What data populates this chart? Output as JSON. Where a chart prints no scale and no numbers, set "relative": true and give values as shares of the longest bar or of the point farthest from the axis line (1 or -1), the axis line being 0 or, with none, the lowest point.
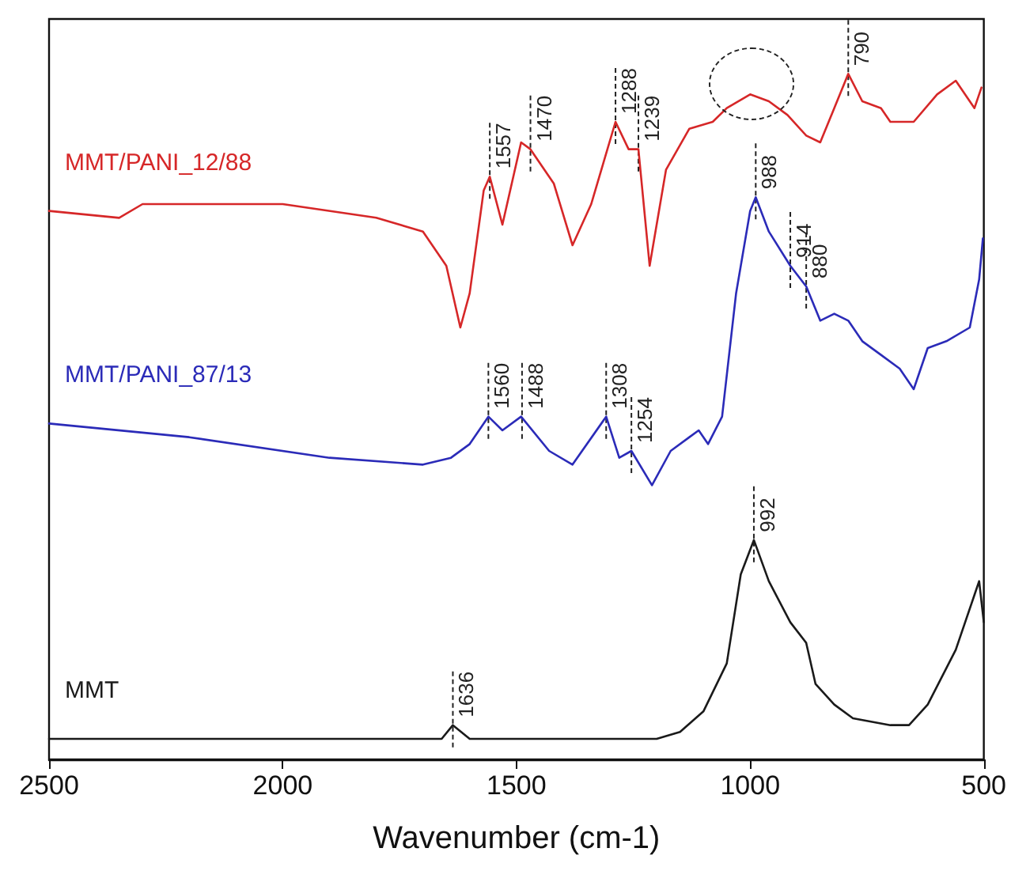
{
  "chart_data": {
    "type": "line",
    "relative": true,
    "xlabel": "Wavenumber (cm-1)",
    "xlim": [
      2500,
      500
    ],
    "xticks": [
      2500,
      2000,
      1500,
      1000,
      500
    ],
    "series": [
      {
        "name": "MMT/PANI_12/88",
        "color": "#d62728",
        "x": [
          2500,
          2350,
          2300,
          2000,
          1800,
          1700,
          1650,
          1620,
          1600,
          1570,
          1557,
          1530,
          1490,
          1470,
          1420,
          1380,
          1340,
          1288,
          1260,
          1239,
          1215,
          1180,
          1130,
          1080,
          1050,
          1000,
          960,
          920,
          880,
          850,
          820,
          790,
          760,
          720,
          700,
          650,
          600,
          560,
          520,
          505
        ],
        "values": [
          0.8,
          0.79,
          0.81,
          0.81,
          0.79,
          0.77,
          0.72,
          0.63,
          0.68,
          0.83,
          0.85,
          0.78,
          0.9,
          0.89,
          0.84,
          0.75,
          0.81,
          0.93,
          0.89,
          0.89,
          0.72,
          0.86,
          0.92,
          0.93,
          0.95,
          0.97,
          0.96,
          0.94,
          0.91,
          0.9,
          0.95,
          1.0,
          0.96,
          0.95,
          0.93,
          0.93,
          0.97,
          0.99,
          0.95,
          0.98
        ]
      },
      {
        "name": "MMT/PANI_87/13",
        "color": "#2b2bb8",
        "x": [
          2500,
          2200,
          1900,
          1700,
          1640,
          1600,
          1560,
          1530,
          1490,
          1430,
          1380,
          1308,
          1280,
          1254,
          1210,
          1170,
          1130,
          1110,
          1090,
          1060,
          1030,
          1000,
          988,
          960,
          914,
          880,
          850,
          820,
          790,
          760,
          720,
          680,
          650,
          620,
          580,
          530,
          510,
          502
        ],
        "values": [
          0.49,
          0.47,
          0.44,
          0.43,
          0.44,
          0.46,
          0.5,
          0.48,
          0.5,
          0.45,
          0.43,
          0.5,
          0.44,
          0.45,
          0.4,
          0.45,
          0.47,
          0.48,
          0.46,
          0.5,
          0.68,
          0.8,
          0.82,
          0.77,
          0.72,
          0.69,
          0.64,
          0.65,
          0.64,
          0.61,
          0.59,
          0.57,
          0.54,
          0.6,
          0.61,
          0.63,
          0.7,
          0.76
        ]
      },
      {
        "name": "MMT",
        "color": "#1a1a1a",
        "x": [
          2500,
          2000,
          1700,
          1660,
          1636,
          1600,
          1200,
          1150,
          1100,
          1050,
          1020,
          992,
          960,
          914,
          880,
          860,
          820,
          780,
          700,
          660,
          620,
          560,
          520,
          510,
          500
        ],
        "values": [
          0.03,
          0.03,
          0.03,
          0.03,
          0.05,
          0.03,
          0.03,
          0.04,
          0.07,
          0.14,
          0.27,
          0.32,
          0.26,
          0.2,
          0.17,
          0.11,
          0.08,
          0.06,
          0.05,
          0.05,
          0.08,
          0.16,
          0.24,
          0.26,
          0.2
        ]
      }
    ],
    "annotations": [
      {
        "text": "1557",
        "x": 1557,
        "y": 0.85
      },
      {
        "text": "1470",
        "x": 1470,
        "y": 0.89
      },
      {
        "text": "1288",
        "x": 1288,
        "y": 0.93
      },
      {
        "text": "1239",
        "x": 1239,
        "y": 0.89
      },
      {
        "text": "790",
        "x": 790,
        "y": 1.0
      },
      {
        "text": "1560",
        "x": 1560,
        "y": 0.5
      },
      {
        "text": "1488",
        "x": 1488,
        "y": 0.5
      },
      {
        "text": "1308",
        "x": 1308,
        "y": 0.5
      },
      {
        "text": "1254",
        "x": 1254,
        "y": 0.45
      },
      {
        "text": "988",
        "x": 988,
        "y": 0.82
      },
      {
        "text": "914",
        "x": 914,
        "y": 0.72
      },
      {
        "text": "880",
        "x": 880,
        "y": 0.69
      },
      {
        "text": "1636",
        "x": 1636,
        "y": 0.05
      },
      {
        "text": "992",
        "x": 992,
        "y": 0.32
      }
    ]
  }
}
